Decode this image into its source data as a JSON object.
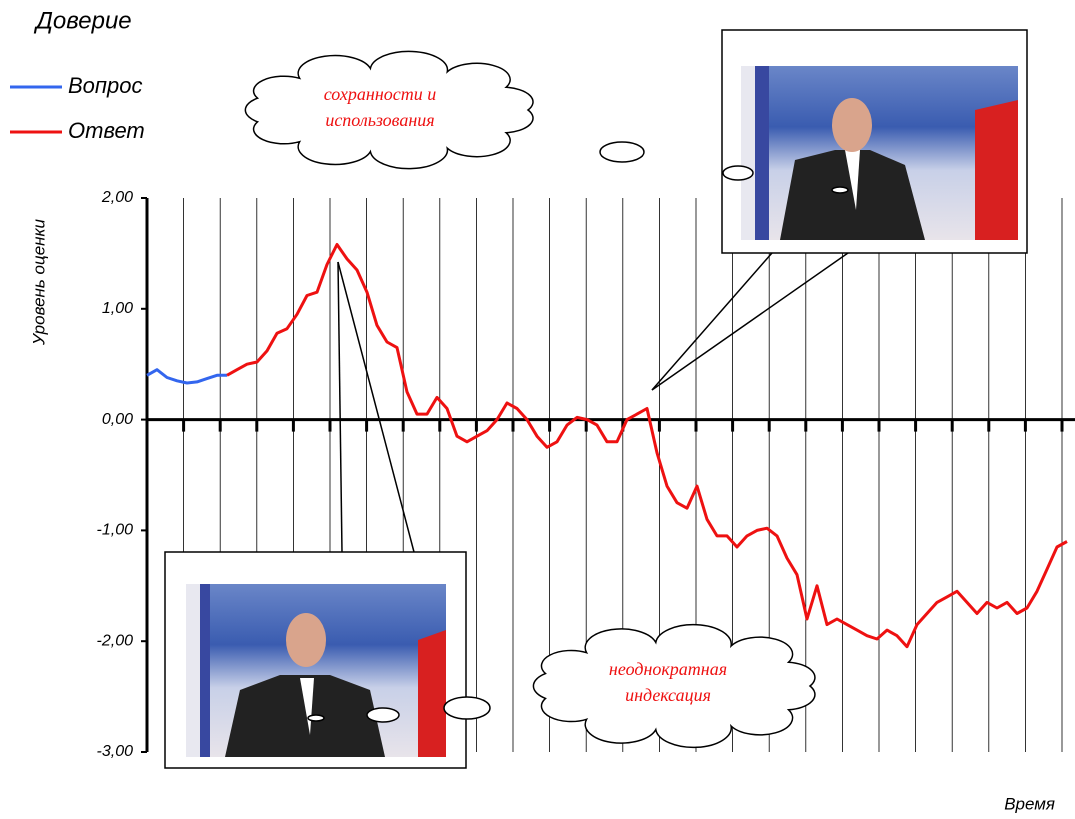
{
  "chart_data": {
    "type": "line",
    "title": "Доверие",
    "y_label": "Уровень оценки",
    "x_label": "Время",
    "ylim": [
      -3,
      2
    ],
    "yticks": [
      {
        "value": 2,
        "label": "2,00"
      },
      {
        "value": 1,
        "label": "1,00"
      },
      {
        "value": 0,
        "label": "0,00"
      },
      {
        "value": -1,
        "label": "-1,00"
      },
      {
        "value": -2,
        "label": "-2,00"
      },
      {
        "value": -3,
        "label": "-3,00"
      }
    ],
    "grid": false,
    "series": [
      {
        "name": "Вопрос",
        "color": "#3366ee",
        "values": [
          0.4,
          0.45,
          0.38,
          0.35,
          0.33,
          0.34,
          0.37,
          0.4,
          0.4,
          null,
          null,
          null,
          null,
          null,
          null,
          null,
          null,
          null,
          null,
          null,
          null,
          null,
          null,
          null,
          null,
          null,
          null,
          null,
          null,
          null,
          null,
          null,
          null,
          null,
          null,
          null,
          null,
          null,
          null,
          null,
          null,
          null,
          null,
          null,
          null,
          null,
          null,
          null,
          null,
          null,
          null,
          null,
          null,
          null,
          null,
          null,
          null,
          null,
          null,
          null,
          null,
          null,
          null,
          null,
          null,
          null,
          null,
          null,
          null,
          null,
          null,
          null,
          null,
          null,
          null,
          null,
          null,
          null,
          null,
          null,
          null,
          null,
          null,
          null,
          null,
          null,
          null,
          null,
          null,
          null,
          null,
          null,
          null
        ]
      },
      {
        "name": "Ответ",
        "color": "#ee1111",
        "values": [
          null,
          null,
          null,
          null,
          null,
          null,
          null,
          null,
          0.4,
          0.45,
          0.5,
          0.52,
          0.62,
          0.78,
          0.82,
          0.95,
          1.12,
          1.15,
          1.4,
          1.58,
          1.45,
          1.35,
          1.15,
          0.85,
          0.7,
          0.65,
          0.25,
          0.05,
          0.05,
          0.2,
          0.1,
          -0.15,
          -0.2,
          -0.15,
          -0.1,
          0.0,
          0.15,
          0.1,
          0.0,
          -0.15,
          -0.25,
          -0.2,
          -0.05,
          0.02,
          0.0,
          -0.05,
          -0.2,
          -0.2,
          0.0,
          0.05,
          0.1,
          -0.3,
          -0.6,
          -0.75,
          -0.8,
          -0.6,
          -0.9,
          -1.05,
          -1.05,
          -1.15,
          -1.05,
          -1.0,
          -0.98,
          -1.05,
          -1.25,
          -1.4,
          -1.8,
          -1.5,
          -1.85,
          -1.8,
          -1.85,
          -1.9,
          -1.95,
          -1.98,
          -1.9,
          -1.95,
          -2.05,
          -1.85,
          -1.75,
          -1.65,
          -1.6,
          -1.55,
          -1.65,
          -1.75,
          -1.65,
          -1.7,
          -1.65,
          -1.75,
          -1.7,
          -1.55,
          -1.35,
          -1.15,
          -1.1
        ]
      }
    ],
    "annotations": [
      "сохранности и",
      "использования",
      "неоднократная",
      "индексация"
    ]
  }
}
